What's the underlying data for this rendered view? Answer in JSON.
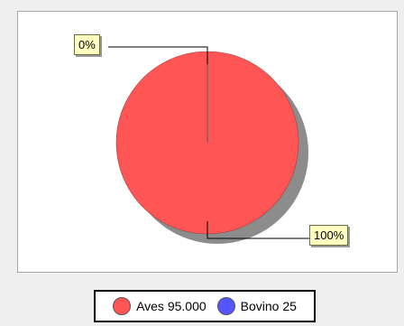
{
  "chart_data": {
    "type": "pie",
    "slices": [
      {
        "label": "Aves",
        "value": 95000,
        "value_label": "95.000",
        "percent_label": "100%",
        "color": "#ff5555"
      },
      {
        "label": "Bovino",
        "value": 25,
        "value_label": "25",
        "percent_label": "0%",
        "color": "#5555ff"
      }
    ],
    "shadow_color": "#8c8c8c",
    "legend_position": "bottom"
  },
  "legend": {
    "items": [
      {
        "text": "Aves 95.000",
        "color": "#ff5555"
      },
      {
        "text": "Bovino 25",
        "color": "#5555ff"
      }
    ]
  },
  "callouts": {
    "small": "0%",
    "large": "100%"
  }
}
